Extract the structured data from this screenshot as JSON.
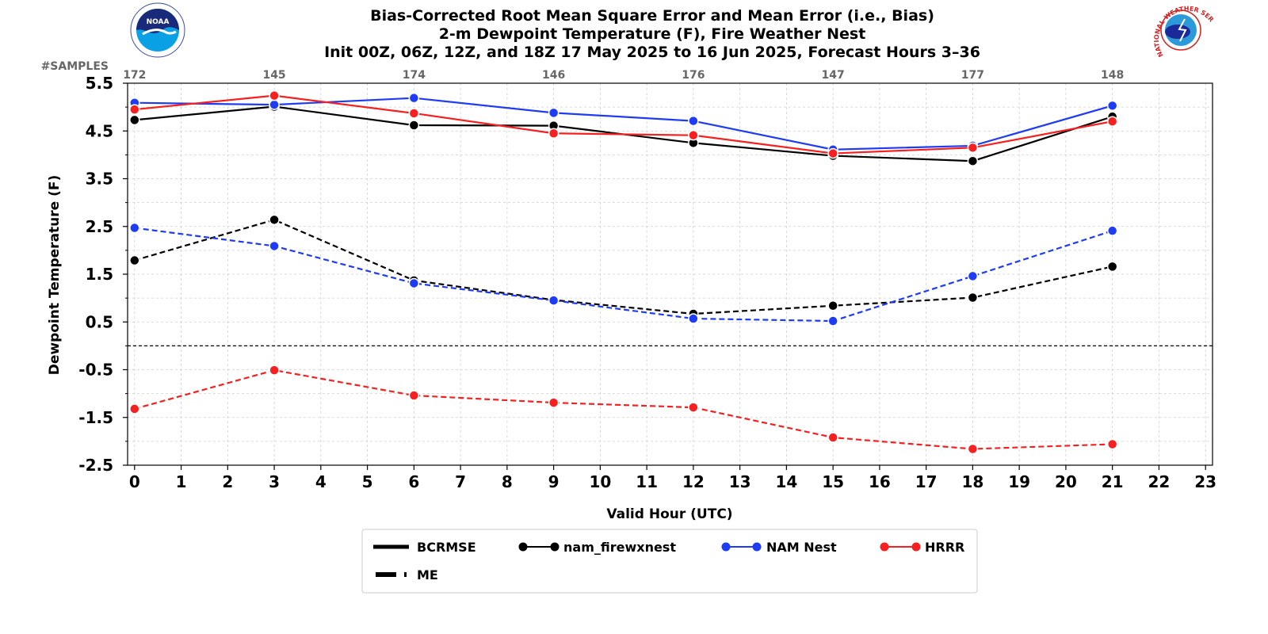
{
  "chart_data": {
    "type": "line",
    "title_lines": [
      "Bias-Corrected Root Mean Square Error and Mean Error (i.e., Bias)",
      "2-m Dewpoint Temperature (F), Fire Weather Nest",
      "Init 00Z, 06Z, 12Z, and 18Z 17 May 2025 to 16 Jun 2025, Forecast Hours 3–36"
    ],
    "xlabel": "Valid Hour (UTC)",
    "ylabel": "Dewpoint Temperature (F)",
    "xlim": [
      -0.15,
      23.15
    ],
    "ylim": [
      -2.5,
      5.5
    ],
    "x_ticks": [
      0,
      1,
      2,
      3,
      4,
      5,
      6,
      7,
      8,
      9,
      10,
      11,
      12,
      13,
      14,
      15,
      16,
      17,
      18,
      19,
      20,
      21,
      22,
      23
    ],
    "x_tick_labels": [
      "0",
      "1",
      "2",
      "3",
      "4",
      "5",
      "6",
      "7",
      "8",
      "9",
      "10",
      "11",
      "12",
      "13",
      "14",
      "15",
      "16",
      "17",
      "18",
      "19",
      "20",
      "21",
      "22",
      "23"
    ],
    "y_ticks": [
      5.5,
      4.5,
      3.5,
      2.5,
      1.5,
      0.5,
      -0.5,
      -1.5,
      -2.5
    ],
    "y_tick_labels": [
      "5.5",
      "4.5",
      "3.5",
      "2.5",
      "1.5",
      "0.5",
      "-0.5",
      "-1.5",
      "-2.5"
    ],
    "grid": true,
    "zero_reference_line": 0,
    "samples": {
      "label": "#SAMPLES",
      "x": [
        0,
        3,
        6,
        9,
        12,
        15,
        18,
        21
      ],
      "values": [
        "172",
        "145",
        "174",
        "146",
        "176",
        "147",
        "177",
        "148"
      ]
    },
    "x": [
      0,
      3,
      6,
      9,
      12,
      15,
      18,
      21
    ],
    "series": [
      {
        "name": "nam_firewxnest",
        "metric": "BCRMSE",
        "color": "#000000",
        "dash": "solid",
        "values": [
          4.73,
          5.01,
          4.62,
          4.61,
          4.25,
          3.98,
          3.87,
          4.8
        ]
      },
      {
        "name": "NAM Nest",
        "metric": "BCRMSE",
        "color": "#1f3cf5",
        "dash": "solid",
        "values": [
          5.09,
          5.05,
          5.19,
          4.88,
          4.71,
          4.11,
          4.19,
          5.03
        ]
      },
      {
        "name": "HRRR",
        "metric": "BCRMSE",
        "color": "#f5201f",
        "dash": "solid",
        "values": [
          4.95,
          5.24,
          4.87,
          4.45,
          4.41,
          4.03,
          4.15,
          4.7
        ]
      },
      {
        "name": "nam_firewxnest",
        "metric": "ME",
        "color": "#000000",
        "dash": "dashed",
        "values": [
          1.79,
          2.64,
          1.37,
          0.96,
          0.67,
          0.84,
          1.01,
          1.66
        ]
      },
      {
        "name": "NAM Nest",
        "metric": "ME",
        "color": "#1f3cf5",
        "dash": "dashed",
        "values": [
          2.47,
          2.09,
          1.31,
          0.95,
          0.57,
          0.52,
          1.46,
          2.41
        ]
      },
      {
        "name": "HRRR",
        "metric": "ME",
        "color": "#f5201f",
        "dash": "dashed",
        "values": [
          -1.32,
          -0.51,
          -1.04,
          -1.19,
          -1.29,
          -1.92,
          -2.16,
          -2.06
        ]
      }
    ],
    "legend": {
      "placement": "bottom-center",
      "items": [
        {
          "label": "BCRMSE",
          "kind": "line-solid",
          "color": "#000000"
        },
        {
          "label": "nam_firewxnest",
          "kind": "marker-line",
          "color": "#000000"
        },
        {
          "label": "NAM Nest",
          "kind": "marker-line",
          "color": "#1f3cf5"
        },
        {
          "label": "HRRR",
          "kind": "marker-line",
          "color": "#f5201f"
        },
        {
          "label": "ME",
          "kind": "line-dashed",
          "color": "#000000"
        }
      ]
    }
  },
  "logos": {
    "left": {
      "icon": "noaa-logo-icon",
      "text": "NOAA"
    },
    "right": {
      "icon": "nws-logo-icon",
      "text": "NATIONAL WEATHER SERVICE"
    }
  }
}
